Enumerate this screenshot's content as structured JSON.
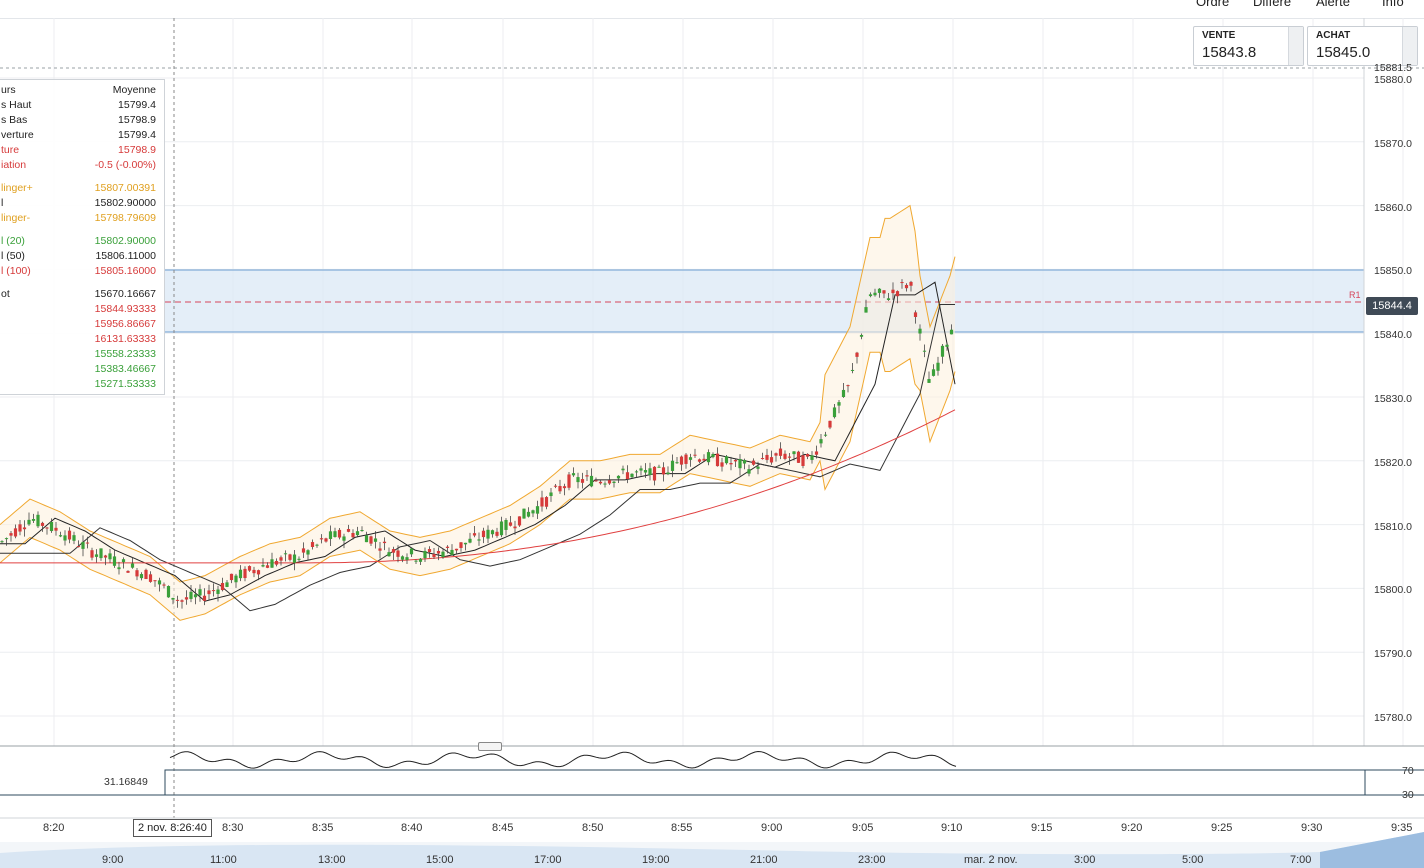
{
  "toolbar": {
    "ordre": "Ordre",
    "differe": "Différé",
    "alerte": "Alerte",
    "info": "Info"
  },
  "quotes": {
    "sell_label": "VENTE",
    "sell_value": "15843.8",
    "buy_label": "ACHAT",
    "buy_value": "15845.0"
  },
  "info_panel": {
    "header": {
      "label": "urs",
      "value": "Moyenne"
    },
    "rows": [
      {
        "label": "s Haut",
        "value": "15799.4"
      },
      {
        "label": "s Bas",
        "value": "15798.9"
      },
      {
        "label": "verture",
        "value": "15799.4"
      },
      {
        "label": "ture",
        "value": "15798.9"
      },
      {
        "label": "iation",
        "value": "-0.5 (-0.00%)"
      },
      {
        "label": "linger+",
        "value": "15807.00391"
      },
      {
        "label": "l",
        "value": "15802.90000"
      },
      {
        "label": "linger-",
        "value": "15798.79609"
      },
      {
        "label": "l (20)",
        "value": "15802.90000"
      },
      {
        "label": "l (50)",
        "value": "15806.11000"
      },
      {
        "label": "l (100)",
        "value": "15805.16000"
      },
      {
        "label": "ot",
        "value": "15670.16667"
      },
      {
        "label": "",
        "value": "15844.93333"
      },
      {
        "label": "",
        "value": "15956.86667"
      },
      {
        "label": "",
        "value": "16131.63333"
      },
      {
        "label": "",
        "value": "15558.23333"
      },
      {
        "label": "",
        "value": "15383.46667"
      },
      {
        "label": "",
        "value": "15271.53333"
      }
    ]
  },
  "y_axis": {
    "top_label": "15881.5",
    "ticks": [
      "15880.0",
      "15870.0",
      "15860.0",
      "15850.0",
      "15840.0",
      "15830.0",
      "15820.0",
      "15810.0",
      "15800.0",
      "15790.0",
      "15780.0"
    ],
    "current_price": "15844.4",
    "r1_label": "R1"
  },
  "x_axis": {
    "ticks": [
      "8:20",
      "8:30",
      "8:35",
      "8:40",
      "8:45",
      "8:50",
      "8:55",
      "9:00",
      "9:05",
      "9:10",
      "9:15",
      "9:20",
      "9:25",
      "9:30",
      "9:35"
    ],
    "crosshair_label": "2 nov. 8:26:40"
  },
  "timeline": {
    "ticks": [
      "9:00",
      "11:00",
      "13:00",
      "15:00",
      "17:00",
      "19:00",
      "21:00",
      "23:00",
      "mar. 2 nov.",
      "3:00",
      "5:00",
      "7:00"
    ]
  },
  "rsi": {
    "value": "31.16849",
    "upper": "70",
    "lower": "30"
  },
  "colors": {
    "up": "#3aa03a",
    "down": "#d63a3a",
    "bollinger": "#f0a830",
    "ma_long": "#e04040",
    "ma_mid": "#222222",
    "zone": "#dbe8f6",
    "rsi_over": "#e04040"
  }
}
